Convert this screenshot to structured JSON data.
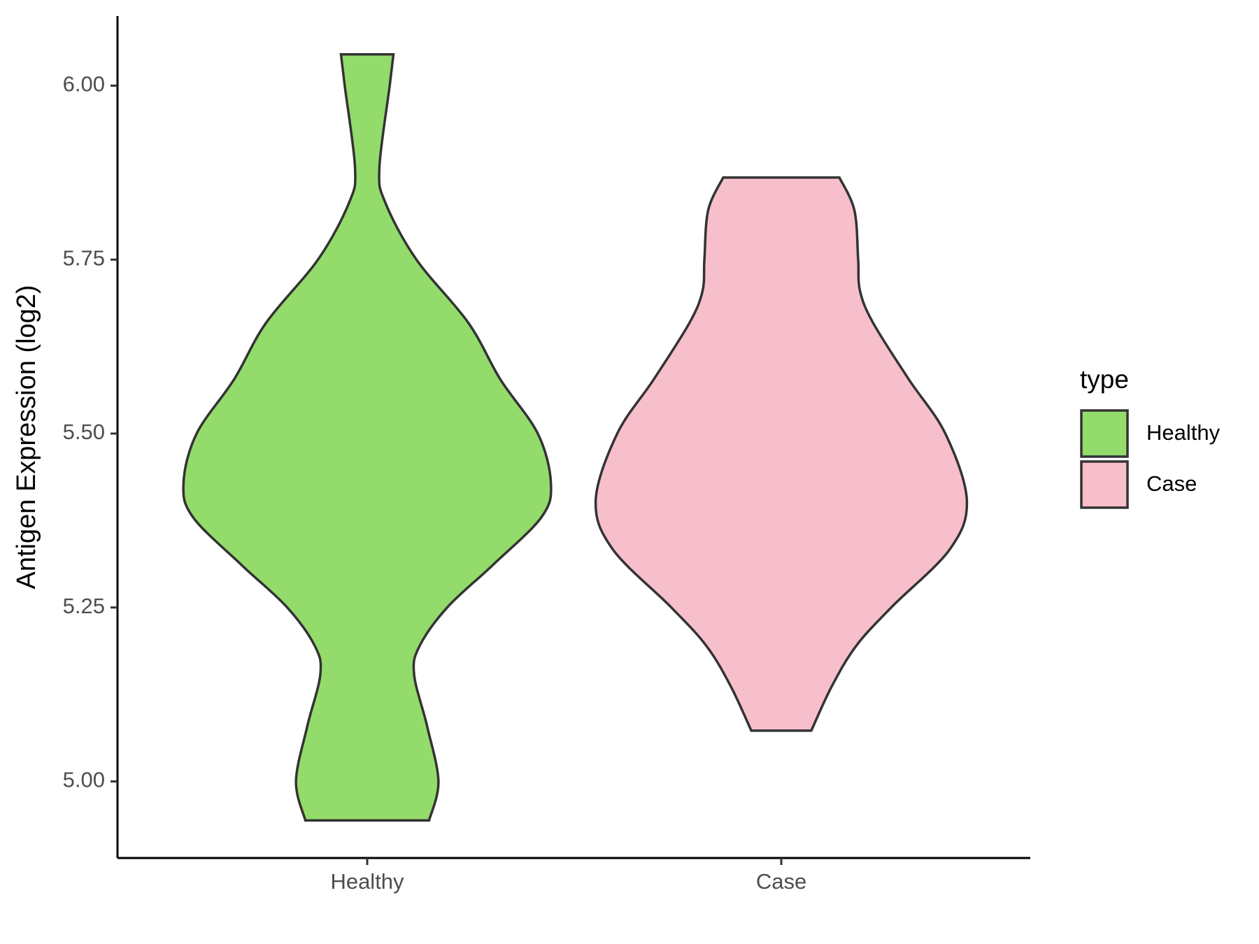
{
  "chart_data": {
    "type": "violin",
    "y_label": "Antigen Expression (log2)",
    "categories": [
      "Healthy",
      "Case"
    ],
    "series": [
      {
        "name": "Healthy",
        "color": "#93dc6b",
        "y": [
          6.045,
          6.0,
          5.882,
          5.833,
          5.751,
          5.659,
          5.578,
          5.5,
          5.429,
          5.38,
          5.311,
          5.251,
          5.195,
          5.154,
          5.079,
          5.0,
          4.944
        ],
        "density": [
          0.14,
          0.12,
          0.065,
          0.095,
          0.26,
          0.54,
          0.71,
          0.91,
          0.98,
          0.93,
          0.67,
          0.43,
          0.28,
          0.25,
          0.32,
          0.38,
          0.33
        ]
      },
      {
        "name": "Case",
        "color": "#f7bfcb",
        "y": [
          5.868,
          5.821,
          5.751,
          5.705,
          5.659,
          5.578,
          5.5,
          5.404,
          5.334,
          5.251,
          5.195,
          5.137,
          5.073
        ],
        "density": [
          0.31,
          0.39,
          0.41,
          0.42,
          0.49,
          0.68,
          0.875,
          0.99,
          0.9,
          0.59,
          0.4,
          0.27,
          0.16
        ]
      }
    ],
    "ylim": [
      4.89,
      6.1
    ],
    "yticks": [
      {
        "value": 5,
        "label": "5.00"
      },
      {
        "value": 5.25,
        "label": "5.25"
      },
      {
        "value": 5.5,
        "label": "5.50"
      },
      {
        "value": 5.75,
        "label": "5.75"
      },
      {
        "value": 6,
        "label": "6.00"
      }
    ],
    "legend_title": "type",
    "legend": "right"
  }
}
